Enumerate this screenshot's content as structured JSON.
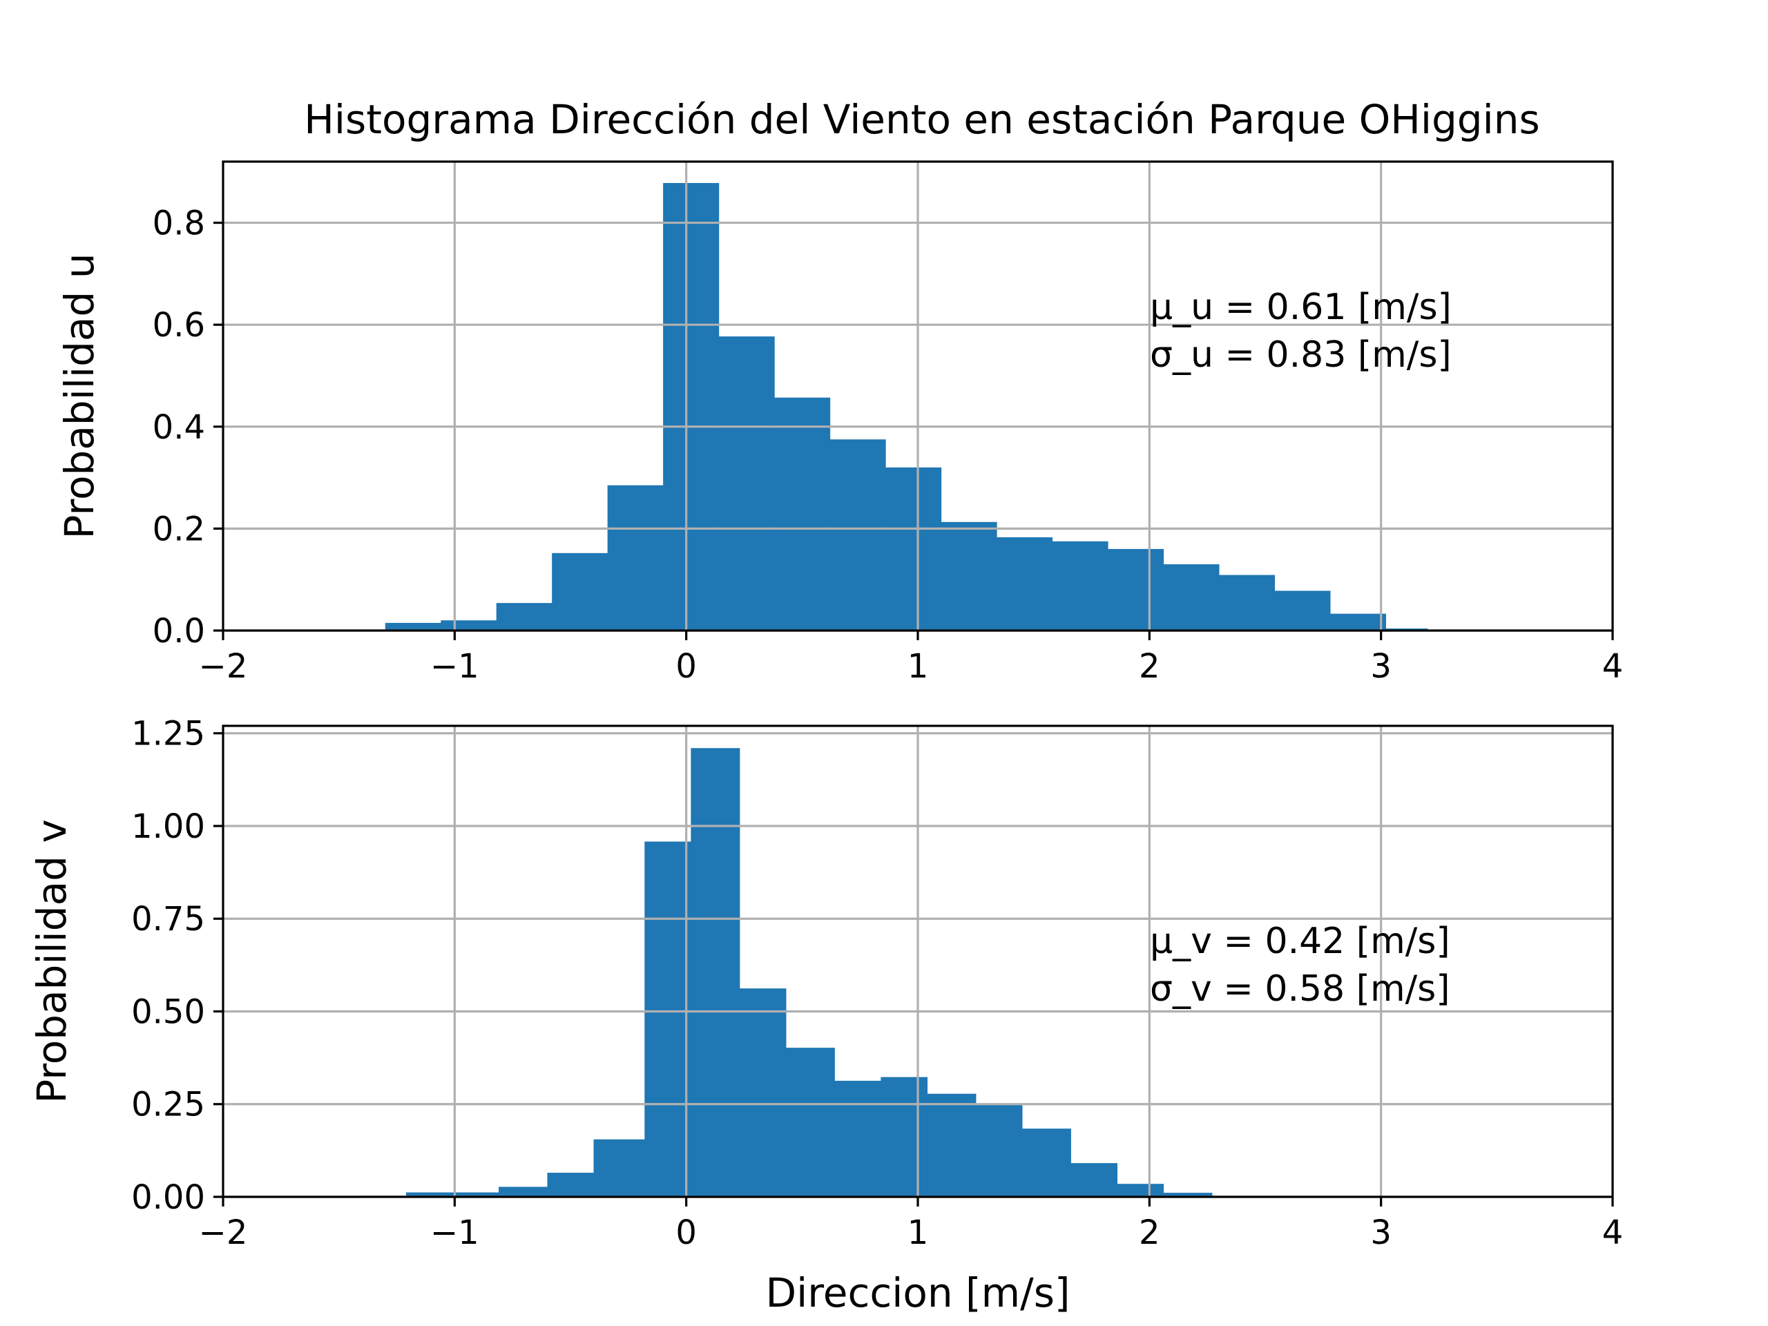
{
  "chart_data": [
    {
      "type": "bar",
      "title": "Histograma Dirección del Viento en estación Parque OHiggins",
      "ylabel": "Probabilidad u",
      "xlim": [
        -2,
        4
      ],
      "ylim": [
        0,
        0.92
      ],
      "xticks": [
        -2,
        -1,
        0,
        1,
        2,
        3,
        4
      ],
      "xtick_labels": [
        "−2",
        "−1",
        "0",
        "1",
        "2",
        "3",
        "4"
      ],
      "yticks": [
        0.0,
        0.2,
        0.4,
        0.6,
        0.8
      ],
      "ytick_labels": [
        "0.0",
        "0.2",
        "0.4",
        "0.6",
        "0.8"
      ],
      "grid": true,
      "color": "#1f77b4",
      "bin_edges": [
        -1.78,
        -1.54,
        -1.3,
        -1.06,
        -0.82,
        -0.58,
        -0.34,
        -0.1,
        0.14,
        0.38,
        0.62,
        0.86,
        1.1,
        1.34,
        1.58,
        1.82,
        2.06,
        2.3,
        2.54,
        2.78,
        3.02,
        3.2
      ],
      "values": [
        0.002,
        0.0,
        0.015,
        0.02,
        0.054,
        0.152,
        0.285,
        0.878,
        0.577,
        0.457,
        0.375,
        0.32,
        0.213,
        0.183,
        0.175,
        0.16,
        0.13,
        0.109,
        0.078,
        0.033,
        0.004
      ],
      "annotation": [
        "μ_u = 0.61 [m/s]",
        "σ_u = 0.83 [m/s]"
      ]
    },
    {
      "type": "bar",
      "xlabel": "Direccion [m/s]",
      "ylabel": "Probabilidad v",
      "xlim": [
        -2,
        4
      ],
      "ylim": [
        0,
        1.27
      ],
      "xticks": [
        -2,
        -1,
        0,
        1,
        2,
        3,
        4
      ],
      "xtick_labels": [
        "−2",
        "−1",
        "0",
        "1",
        "2",
        "3",
        "4"
      ],
      "yticks": [
        0.0,
        0.25,
        0.5,
        0.75,
        1.0,
        1.25
      ],
      "ytick_labels": [
        "0.00",
        "0.25",
        "0.50",
        "0.75",
        "1.00",
        "1.25"
      ],
      "grid": true,
      "color": "#1f77b4",
      "bin_edges": [
        -1.42,
        -1.21,
        -1.01,
        -0.81,
        -0.6,
        -0.4,
        -0.18,
        0.02,
        0.23,
        0.43,
        0.64,
        0.84,
        1.04,
        1.25,
        1.45,
        1.66,
        1.86,
        2.06,
        2.27
      ],
      "values": [
        0.003,
        0.012,
        0.012,
        0.027,
        0.065,
        0.155,
        0.958,
        1.21,
        0.562,
        0.402,
        0.313,
        0.323,
        0.278,
        0.248,
        0.184,
        0.091,
        0.035,
        0.011
      ],
      "annotation": [
        "μ_v = 0.42 [m/s]",
        "σ_v = 0.58 [m/s]"
      ]
    }
  ]
}
